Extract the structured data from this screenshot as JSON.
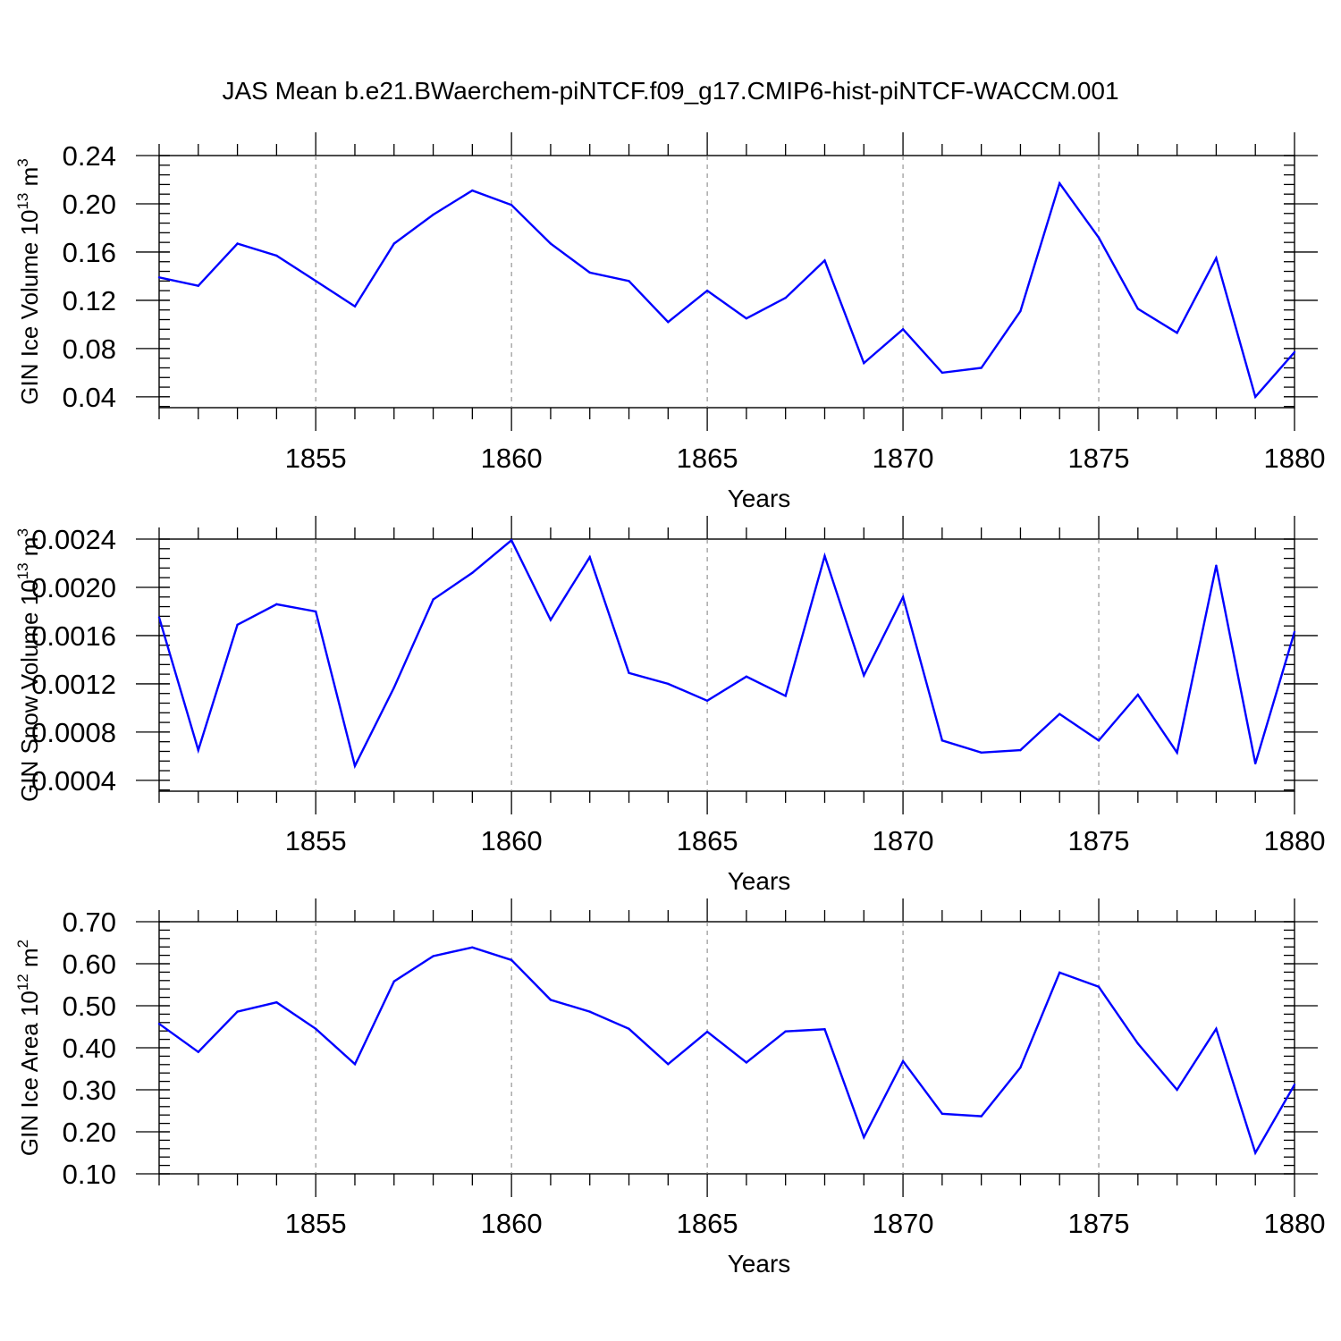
{
  "title": "JAS Mean b.e21.BWaerchem-piNTCF.f09_g17.CMIP6-hist-piNTCF-WACCM.001",
  "colors": {
    "line": "#0000ff",
    "axis": "#000000",
    "grid": "#808080"
  },
  "chart_data": [
    {
      "type": "line",
      "ylabel": {
        "main": "GIN Ice Volume 10",
        "sup": "13",
        "unit": " m",
        "unit_sup": "3"
      },
      "xlabel": "Years",
      "xlim": [
        1851,
        1880
      ],
      "ylim": [
        0.031,
        0.24
      ],
      "yticks": [
        0.04,
        0.08,
        0.12,
        0.16,
        0.2,
        0.24
      ],
      "ytick_labels": [
        "0.04",
        "0.08",
        "0.12",
        "0.16",
        "0.20",
        "0.24"
      ],
      "xticks": [
        1855,
        1860,
        1865,
        1870,
        1875,
        1880
      ],
      "xtick_labels": [
        "1855",
        "1860",
        "1865",
        "1870",
        "1875",
        "1880"
      ],
      "x": [
        1851,
        1852,
        1853,
        1854,
        1855,
        1856,
        1857,
        1858,
        1859,
        1860,
        1861,
        1862,
        1863,
        1864,
        1865,
        1866,
        1867,
        1868,
        1869,
        1870,
        1871,
        1872,
        1873,
        1874,
        1875,
        1876,
        1877,
        1878,
        1879,
        1880
      ],
      "values": [
        0.139,
        0.132,
        0.167,
        0.157,
        0.136,
        0.115,
        0.167,
        0.191,
        0.211,
        0.199,
        0.167,
        0.143,
        0.136,
        0.102,
        0.128,
        0.105,
        0.122,
        0.153,
        0.068,
        0.096,
        0.06,
        0.064,
        0.111,
        0.217,
        0.172,
        0.113,
        0.093,
        0.155,
        0.04,
        0.077
      ]
    },
    {
      "type": "line",
      "ylabel": {
        "main": "GIN Snow Volume 10",
        "sup": "13",
        "unit": " m",
        "unit_sup": "3"
      },
      "xlabel": "Years",
      "xlim": [
        1851,
        1880
      ],
      "ylim": [
        0.00031,
        0.0024
      ],
      "yticks": [
        0.0004,
        0.0008,
        0.0012,
        0.0016,
        0.002,
        0.0024
      ],
      "ytick_labels": [
        "0.0004",
        "0.0008",
        "0.0012",
        "0.0016",
        "0.0020",
        "0.0024"
      ],
      "xticks": [
        1855,
        1860,
        1865,
        1870,
        1875,
        1880
      ],
      "xtick_labels": [
        "1855",
        "1860",
        "1865",
        "1870",
        "1875",
        "1880"
      ],
      "x": [
        1851,
        1852,
        1853,
        1854,
        1855,
        1856,
        1857,
        1858,
        1859,
        1860,
        1861,
        1862,
        1863,
        1864,
        1865,
        1866,
        1867,
        1868,
        1869,
        1870,
        1871,
        1872,
        1873,
        1874,
        1875,
        1876,
        1877,
        1878,
        1879,
        1880
      ],
      "values": [
        0.00175,
        0.00065,
        0.00169,
        0.00186,
        0.0018,
        0.00052,
        0.00117,
        0.0019,
        0.00212,
        0.00239,
        0.00173,
        0.00225,
        0.00129,
        0.0012,
        0.00106,
        0.00126,
        0.0011,
        0.00226,
        0.00127,
        0.00192,
        0.00073,
        0.00063,
        0.00065,
        0.00095,
        0.00073,
        0.00111,
        0.00063,
        0.00218,
        0.00054,
        0.00163
      ]
    },
    {
      "type": "line",
      "ylabel": {
        "main": "GIN Ice Area 10",
        "sup": "12",
        "unit": " m",
        "unit_sup": "2"
      },
      "xlabel": "Years",
      "xlim": [
        1851,
        1880
      ],
      "ylim": [
        0.1,
        0.7
      ],
      "yticks": [
        0.1,
        0.2,
        0.3,
        0.4,
        0.5,
        0.6,
        0.7
      ],
      "ytick_labels": [
        "0.10",
        "0.20",
        "0.30",
        "0.40",
        "0.50",
        "0.60",
        "0.70"
      ],
      "xticks": [
        1855,
        1860,
        1865,
        1870,
        1875,
        1880
      ],
      "xtick_labels": [
        "1855",
        "1860",
        "1865",
        "1870",
        "1875",
        "1880"
      ],
      "x": [
        1851,
        1852,
        1853,
        1854,
        1855,
        1856,
        1857,
        1858,
        1859,
        1860,
        1861,
        1862,
        1863,
        1864,
        1865,
        1866,
        1867,
        1868,
        1869,
        1870,
        1871,
        1872,
        1873,
        1874,
        1875,
        1876,
        1877,
        1878,
        1879,
        1880
      ],
      "values": [
        0.457,
        0.39,
        0.486,
        0.508,
        0.445,
        0.361,
        0.558,
        0.618,
        0.639,
        0.609,
        0.514,
        0.486,
        0.445,
        0.361,
        0.438,
        0.365,
        0.439,
        0.444,
        0.187,
        0.368,
        0.243,
        0.237,
        0.353,
        0.579,
        0.545,
        0.41,
        0.3,
        0.445,
        0.15,
        0.312
      ]
    }
  ]
}
